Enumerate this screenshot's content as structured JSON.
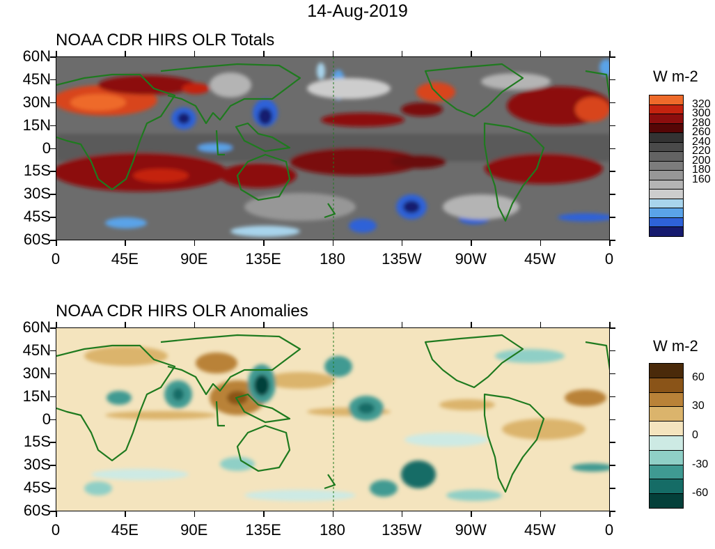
{
  "date_title": "14-Aug-2019",
  "panels": {
    "totals": {
      "title": "NOAA CDR HIRS OLR Totals",
      "colorbar_title": "W m-2",
      "colorbar_labels": [
        "320",
        "300",
        "280",
        "260",
        "240",
        "220",
        "200",
        "180",
        "160"
      ],
      "colorbar_colors": [
        "#ee6a2a",
        "#c4230f",
        "#8c0e0e",
        "#560606",
        "#333333",
        "#4a4a4a",
        "#636363",
        "#7c7c7c",
        "#979797",
        "#b4b4b4",
        "#cdcdcd",
        "#a8d4ec",
        "#5aa3e8",
        "#2e62d8",
        "#161a6e"
      ]
    },
    "anomalies": {
      "title": "NOAA CDR HIRS OLR Anomalies",
      "colorbar_title": "W m-2",
      "colorbar_labels": [
        "60",
        "30",
        "0",
        "-30",
        "-60"
      ],
      "colorbar_colors": [
        "#4a2a0a",
        "#8a5418",
        "#b98238",
        "#dbb46c",
        "#f4e4be",
        "#cdeae4",
        "#8fcfc6",
        "#3f9a92",
        "#156c66",
        "#04403a"
      ]
    }
  },
  "axes": {
    "lat_labels": [
      "60N",
      "45N",
      "30N",
      "15N",
      "0",
      "15S",
      "30S",
      "45S",
      "60S"
    ],
    "lon_labels": [
      "0",
      "45E",
      "90E",
      "135E",
      "180",
      "135W",
      "90W",
      "45W",
      "0"
    ]
  }
}
